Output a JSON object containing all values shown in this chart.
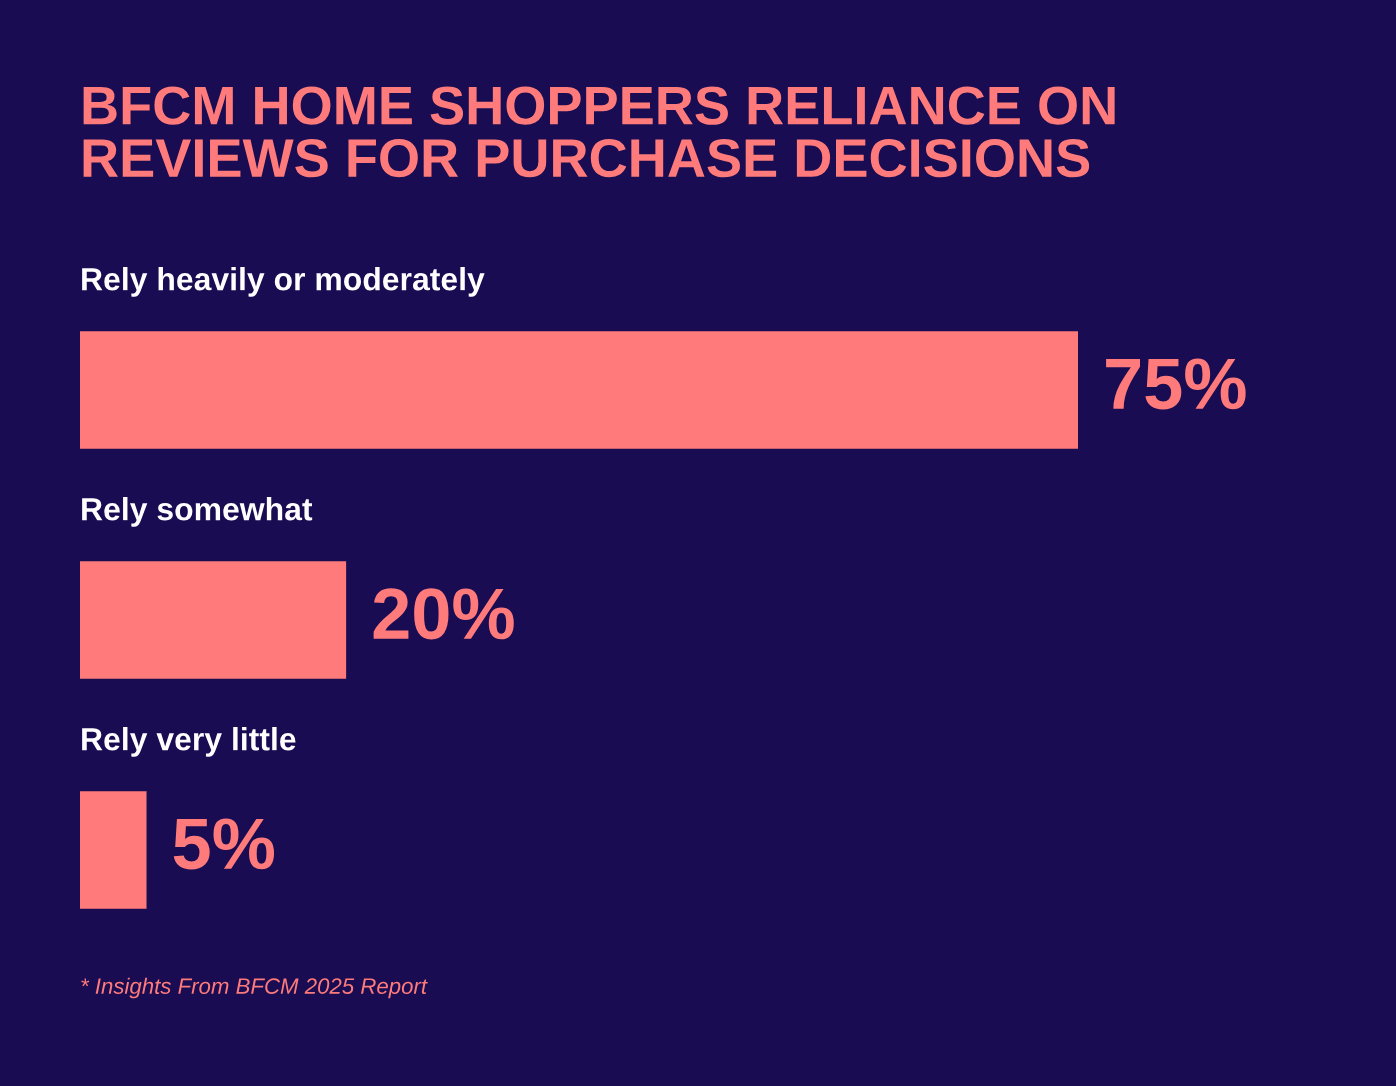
{
  "chart_data": {
    "type": "bar",
    "orientation": "horizontal",
    "title": "BFCM HOME SHOPPERS RELIANCE ON\nREVIEWS FOR PURCHASE DECISIONS",
    "categories": [
      "Rely heavily or moderately",
      "Rely somewhat",
      "Rely very little"
    ],
    "values": [
      75,
      20,
      5
    ],
    "color": "#ff7b7b",
    "value_labels": [
      "75%",
      "20%",
      "5%"
    ],
    "annotations": [
      "* Insights From BFCM 2025 Report"
    ],
    "tick_labels": false
  }
}
